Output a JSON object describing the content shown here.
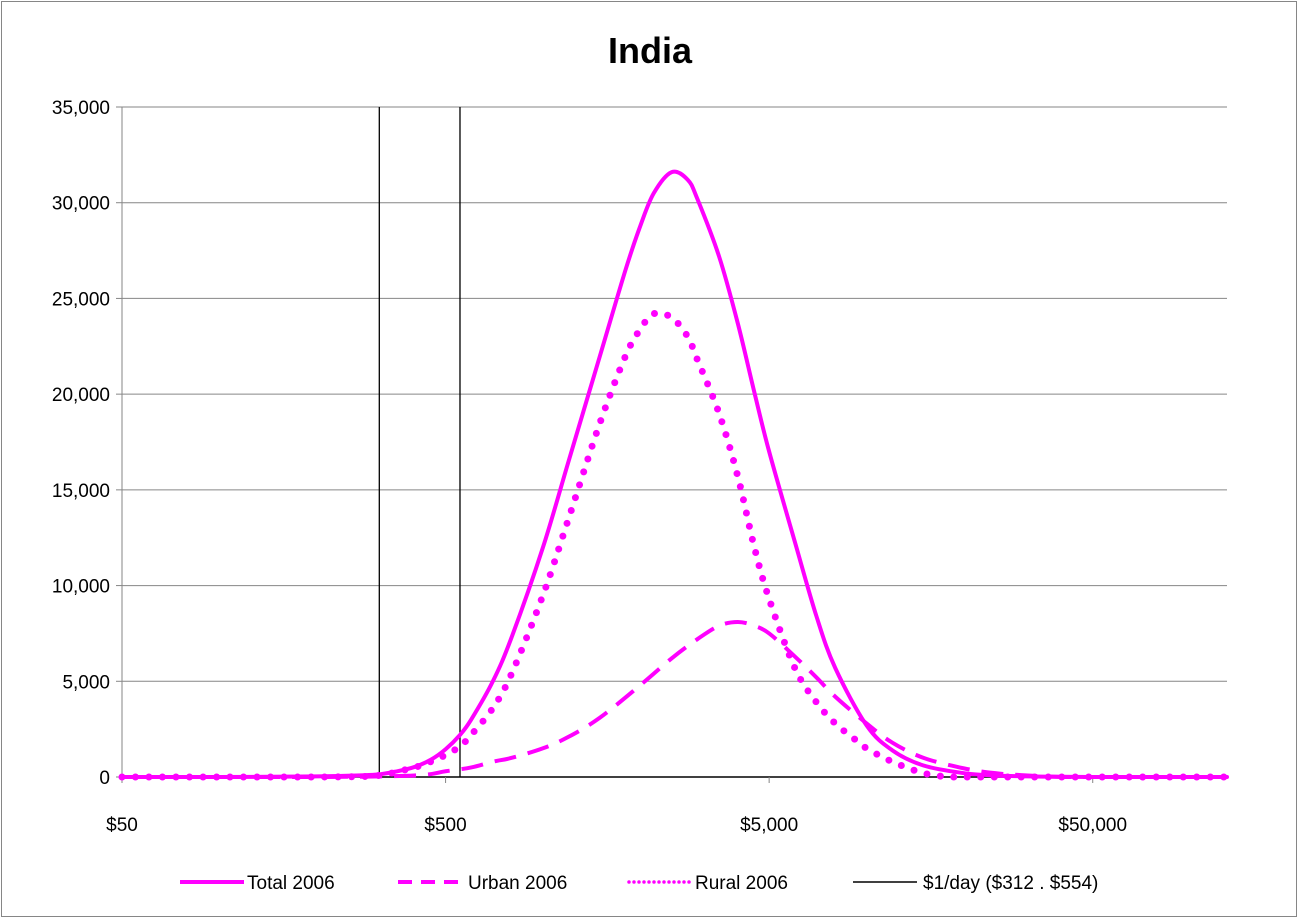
{
  "chart_data": {
    "type": "line",
    "title": "India",
    "xlabel": "",
    "ylabel": "",
    "x_scale": "log",
    "xlim": [
      50,
      130000
    ],
    "ylim": [
      0,
      35000
    ],
    "grid": "horizontal",
    "legend_position": "bottom",
    "y_tick_values": [
      0,
      5000,
      10000,
      15000,
      20000,
      25000,
      30000,
      35000
    ],
    "y_tick_labels": [
      "0",
      "5,000",
      "10,000",
      "15,000",
      "20,000",
      "25,000",
      "30,000",
      "35,000"
    ],
    "x_tick_values": [
      50,
      500,
      5000,
      50000
    ],
    "x_tick_labels": [
      "$50",
      "$500",
      "$5,000",
      "$50,000"
    ],
    "series": [
      {
        "name": "Total 2006",
        "style": "solid",
        "color": "#FF00FF",
        "x": [
          50,
          100,
          200,
          280,
          312,
          350,
          400,
          450,
          500,
          554,
          600,
          700,
          800,
          1000,
          1200,
          1500,
          1800,
          2000,
          2200,
          2500,
          2800,
          3000,
          3500,
          4000,
          4500,
          5000,
          6000,
          7000,
          8000,
          10000,
          12000,
          15000,
          20000,
          25000,
          30000,
          40000,
          50000,
          70000,
          100000,
          130000
        ],
        "y": [
          0,
          0,
          30,
          90,
          140,
          280,
          520,
          900,
          1450,
          2200,
          3000,
          5000,
          7300,
          12000,
          16500,
          22000,
          26500,
          28800,
          30500,
          31600,
          31200,
          30200,
          27200,
          23700,
          20100,
          17000,
          12300,
          8400,
          5700,
          2700,
          1400,
          600,
          200,
          80,
          40,
          10,
          0,
          0,
          0,
          0
        ]
      },
      {
        "name": "Urban 2006",
        "style": "dashed",
        "color": "#FF00FF",
        "x": [
          50,
          200,
          400,
          500,
          600,
          700,
          800,
          1000,
          1200,
          1500,
          2000,
          2500,
          3000,
          3500,
          4000,
          4500,
          5000,
          6000,
          7000,
          8000,
          10000,
          12000,
          15000,
          20000,
          25000,
          30000,
          40000,
          50000,
          70000,
          100000,
          130000
        ],
        "y": [
          0,
          0,
          80,
          300,
          500,
          800,
          1000,
          1500,
          2100,
          3100,
          4800,
          6200,
          7200,
          7900,
          8100,
          7900,
          7500,
          6300,
          5200,
          4200,
          2800,
          1800,
          1000,
          450,
          200,
          100,
          0,
          0,
          0,
          0,
          0
        ]
      },
      {
        "name": "Rural 2006",
        "style": "dotted",
        "color": "#FF00FF",
        "x": [
          50,
          100,
          200,
          300,
          400,
          450,
          500,
          554,
          600,
          700,
          800,
          1000,
          1200,
          1500,
          1800,
          2000,
          2200,
          2500,
          2800,
          3000,
          3500,
          4000,
          4500,
          5000,
          6000,
          7000,
          8000,
          9000,
          10000,
          12000,
          15000,
          18000,
          20000,
          25000,
          30000,
          40000,
          50000,
          70000,
          100000,
          130000
        ],
        "y": [
          0,
          0,
          0,
          50,
          500,
          800,
          1150,
          1600,
          2200,
          3600,
          5400,
          9500,
          13500,
          18500,
          22000,
          23400,
          24200,
          24000,
          23000,
          21800,
          19000,
          15700,
          12000,
          9300,
          5700,
          3900,
          2800,
          2100,
          1500,
          800,
          200,
          0,
          0,
          0,
          0,
          0,
          0,
          0,
          0,
          0
        ]
      },
      {
        "name": "$1/day ($312 . $554)",
        "style": "vertical-lines",
        "color": "#000000",
        "x": [
          312,
          554
        ]
      }
    ]
  }
}
